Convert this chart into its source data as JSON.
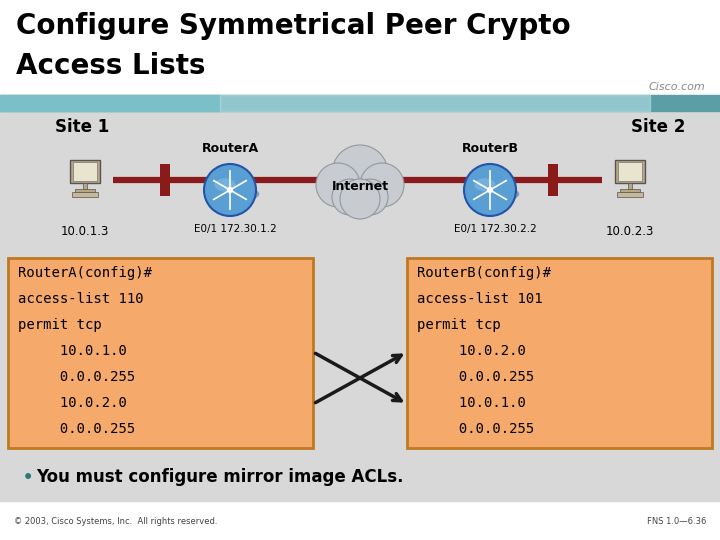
{
  "title_line1": "Configure Symmetrical Peer Crypto",
  "title_line2": "Access Lists",
  "title_fontsize": 20,
  "title_color": "#000000",
  "header_bar_color": "#5b9ea6",
  "cisco_text": "Cisco.com",
  "site1_label": "Site 1",
  "site2_label": "Site 2",
  "router_a_label": "RouterA",
  "router_b_label": "RouterB",
  "internet_label": "Internet",
  "ip_site1": "10.0.1.3",
  "ip_site2": "10.0.2.3",
  "ip_routerA": "E0/1 172.30.1.2",
  "ip_routerB": "E0/1 172.30.2.2",
  "box_color": "#f5a96a",
  "box_edge_color": "#c07820",
  "box_a_lines": [
    "RouterA(config)#",
    "access-list 110",
    "permit tcp",
    "     10.0.1.0",
    "     0.0.0.255",
    "     10.0.2.0",
    "     0.0.0.255"
  ],
  "box_b_lines": [
    "RouterB(config)#",
    "access-list 101",
    "permit tcp",
    "     10.0.2.0",
    "     0.0.0.255",
    "     10.0.1.0",
    "     0.0.0.255"
  ],
  "bullet_text": "You must configure mirror image ACLs.",
  "footer_left": "© 2003, Cisco Systems, Inc.  All rights reserved.",
  "footer_right": "FNS 1.0—6.36",
  "bg_color": "#ffffff",
  "content_bg": "#d8d8d8",
  "line_color": "#8b1a1a",
  "arrow_color": "#1a1a1a",
  "bullet_color": "#2b7a78"
}
